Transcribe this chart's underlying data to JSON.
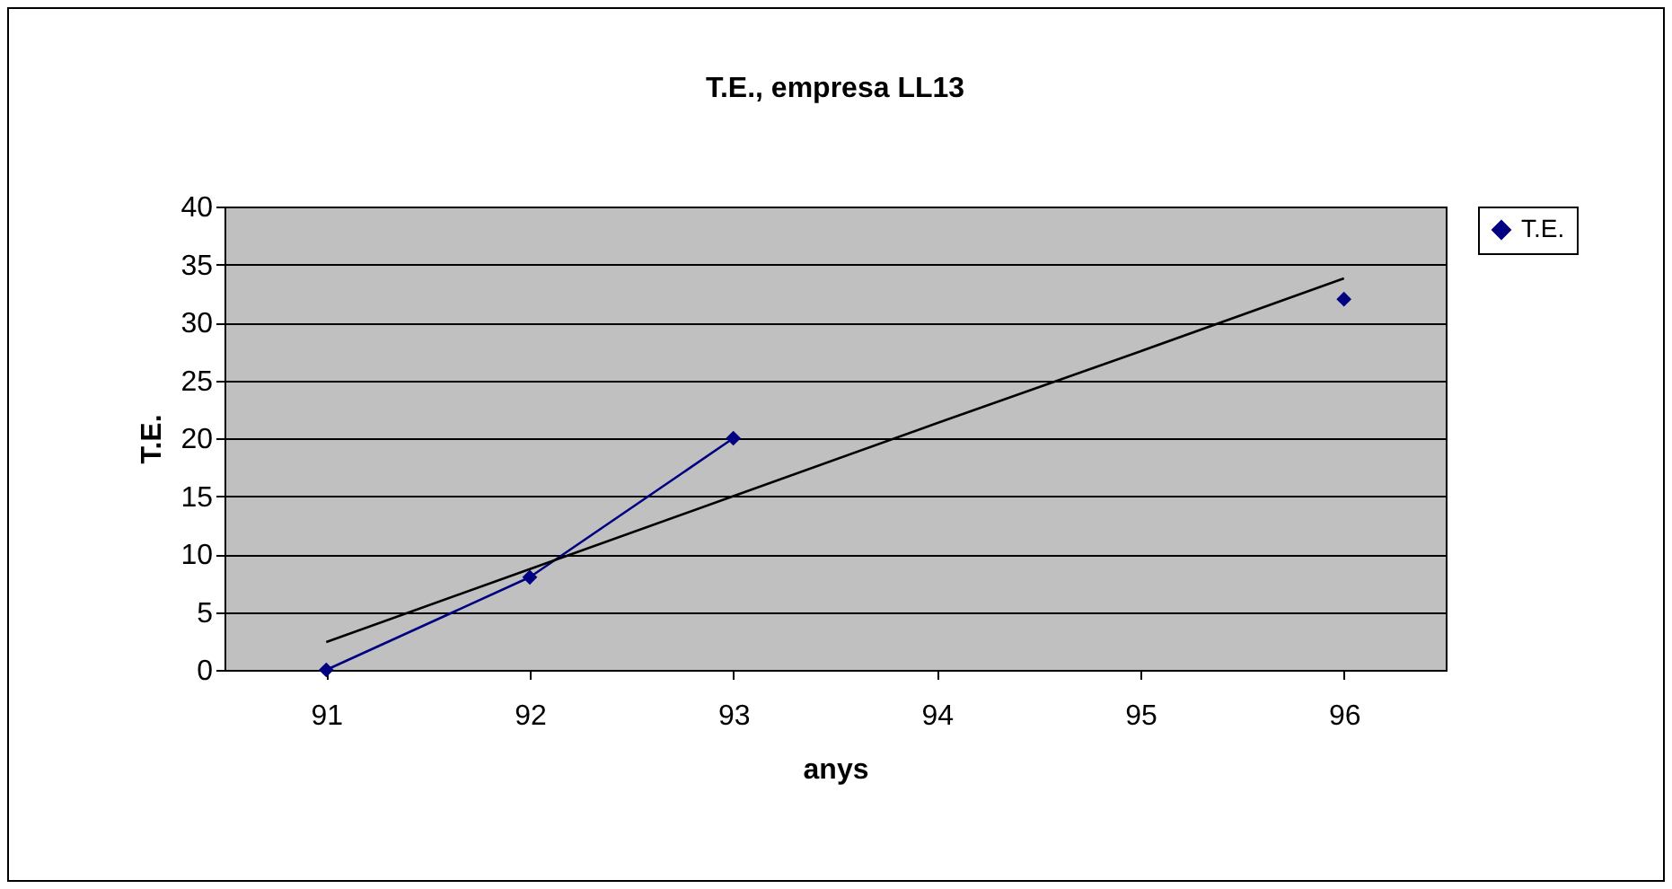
{
  "chart_data": {
    "type": "line",
    "title": "T.E., empresa LL13",
    "xlabel": "anys",
    "ylabel": "T.E.",
    "categories": [
      "91",
      "92",
      "93",
      "94",
      "95",
      "96"
    ],
    "ylim": [
      0,
      40
    ],
    "yticks": [
      0,
      5,
      10,
      15,
      20,
      25,
      30,
      35,
      40
    ],
    "grid": "y",
    "legend": "right",
    "series": [
      {
        "name": "T.E.",
        "color": "#000080",
        "marker": "diamond",
        "values": [
          0,
          8,
          20,
          null,
          null,
          32
        ]
      },
      {
        "type": "line",
        "color": "#000000",
        "marker": "none",
        "values": [
          2.4,
          8.7,
          15,
          21.3,
          27.5,
          33.8
        ]
      }
    ]
  }
}
